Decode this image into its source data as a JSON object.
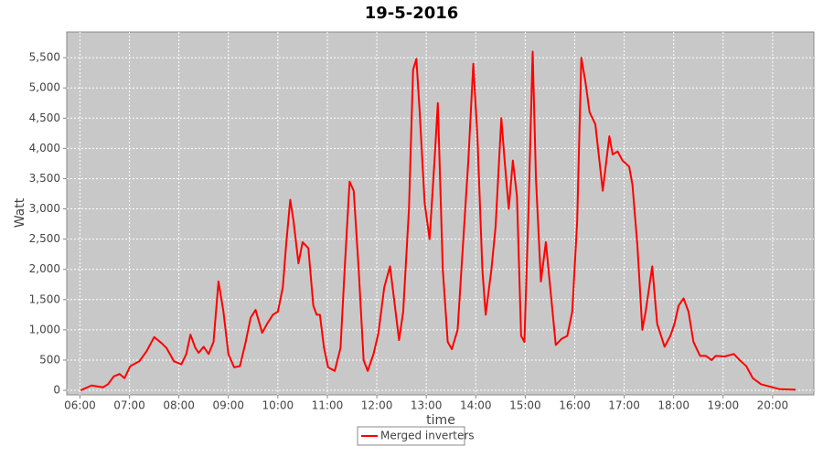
{
  "chart_data": {
    "type": "line",
    "title": "19-5-2016",
    "x_label": "time",
    "y_label": "Watt",
    "x": [
      "06:01",
      "06:14",
      "06:28",
      "06:34",
      "06:41",
      "06:48",
      "06:54",
      "07:01",
      "07:12",
      "07:21",
      "07:30",
      "07:39",
      "07:45",
      "07:54",
      "08:03",
      "08:09",
      "08:14",
      "08:20",
      "08:24",
      "08:30",
      "08:36",
      "08:42",
      "08:48",
      "08:54",
      "09:00",
      "09:07",
      "09:14",
      "09:21",
      "09:27",
      "09:33",
      "09:41",
      "09:47",
      "09:54",
      "10:00",
      "10:06",
      "10:10",
      "10:15",
      "10:19",
      "10:25",
      "10:30",
      "10:37",
      "10:43",
      "10:47",
      "10:51",
      "10:56",
      "11:01",
      "11:09",
      "11:16",
      "11:21",
      "11:27",
      "11:32",
      "11:38",
      "11:44",
      "11:49",
      "11:56",
      "12:02",
      "12:09",
      "12:16",
      "12:21",
      "12:27",
      "12:32",
      "12:39",
      "12:44",
      "12:48",
      "12:52",
      "12:58",
      "13:04",
      "13:10",
      "13:14",
      "13:20",
      "13:26",
      "13:31",
      "13:38",
      "13:44",
      "13:51",
      "13:57",
      "14:02",
      "14:08",
      "14:12",
      "14:19",
      "14:24",
      "14:31",
      "14:35",
      "14:40",
      "14:45",
      "14:50",
      "14:55",
      "14:59",
      "15:04",
      "15:09",
      "15:13",
      "15:19",
      "15:25",
      "15:31",
      "15:37",
      "15:44",
      "15:51",
      "15:57",
      "16:03",
      "16:08",
      "16:13",
      "16:18",
      "16:25",
      "16:34",
      "16:42",
      "16:46",
      "16:52",
      "16:58",
      "17:06",
      "17:10",
      "17:16",
      "17:22",
      "17:26",
      "17:34",
      "17:40",
      "17:49",
      "17:56",
      "18:01",
      "18:06",
      "18:12",
      "18:18",
      "18:24",
      "18:32",
      "18:39",
      "18:46",
      "18:51",
      "19:02",
      "19:13",
      "19:20",
      "19:28",
      "19:36",
      "19:46",
      "19:57",
      "20:08",
      "20:28"
    ],
    "series": [
      {
        "name": "Merged inverters",
        "color": "#ff0000",
        "values": [
          0,
          80,
          50,
          100,
          230,
          270,
          200,
          400,
          480,
          650,
          880,
          780,
          700,
          480,
          430,
          600,
          920,
          700,
          620,
          720,
          600,
          800,
          1800,
          1300,
          600,
          380,
          400,
          800,
          1200,
          1330,
          950,
          1100,
          1250,
          1300,
          1700,
          2400,
          3150,
          2800,
          2100,
          2450,
          2350,
          1400,
          1250,
          1250,
          700,
          380,
          320,
          700,
          2000,
          3450,
          3300,
          2000,
          500,
          320,
          600,
          950,
          1700,
          2050,
          1500,
          830,
          1300,
          3000,
          5300,
          5480,
          4600,
          3100,
          2500,
          3800,
          4750,
          2000,
          800,
          680,
          1000,
          2300,
          3800,
          5400,
          4200,
          2000,
          1250,
          2000,
          2700,
          4500,
          3800,
          3000,
          3800,
          3200,
          900,
          800,
          3000,
          5600,
          3500,
          1800,
          2450,
          1600,
          750,
          850,
          900,
          1300,
          2800,
          5500,
          5100,
          4600,
          4400,
          3300,
          4200,
          3900,
          3950,
          3800,
          3700,
          3400,
          2400,
          1000,
          1300,
          2050,
          1100,
          720,
          900,
          1100,
          1400,
          1520,
          1300,
          800,
          570,
          570,
          500,
          570,
          560,
          600,
          500,
          400,
          200,
          100,
          60,
          20,
          10
        ]
      }
    ],
    "xlim": [
      "05:44",
      "20:50"
    ],
    "xticks": [
      "06:00",
      "07:00",
      "08:00",
      "09:00",
      "10:00",
      "11:00",
      "12:00",
      "13:00",
      "14:00",
      "15:00",
      "16:00",
      "17:00",
      "18:00",
      "19:00",
      "20:00"
    ],
    "ylim": [
      -75,
      5925
    ],
    "yticks": [
      0,
      500,
      {
        "value": 1000,
        "label": "1,000"
      },
      {
        "value": 1500,
        "label": "1,500"
      },
      {
        "value": 2000,
        "label": "2,000"
      },
      {
        "value": 2500,
        "label": "2,500"
      },
      {
        "value": 3000,
        "label": "3,000"
      },
      {
        "value": 3500,
        "label": "3,500"
      },
      {
        "value": 4000,
        "label": "4,000"
      },
      {
        "value": 4500,
        "label": "4,500"
      },
      {
        "value": 5000,
        "label": "5,000"
      },
      {
        "value": 5500,
        "label": "5,500"
      }
    ],
    "grid": true,
    "legend": "bottom"
  }
}
